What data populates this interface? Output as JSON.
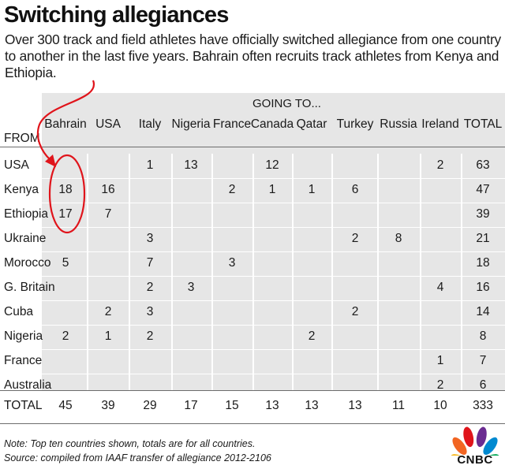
{
  "title": "Switching allegiances",
  "subtitle": "Over 300 track and field athletes have officially switched allegiance from one country to another in the last five years. Bahrain often recruits track athletes from Kenya and Ethiopia.",
  "notes": {
    "note": "Note: Top ten countries shown, totals are for all countries.",
    "source": "Source: compiled from IAAF transfer of allegiance 2012-2106"
  },
  "logo": {
    "text": "CNBC",
    "icon": "peacock-icon"
  },
  "colors": {
    "table_background": "#e6e6e6",
    "annotation_red": "#e0141b",
    "text": "#1a1a1a"
  },
  "chart_data": {
    "type": "table",
    "title": "Switching allegiances",
    "column_group_label": "GOING TO...",
    "row_group_label": "FROM",
    "columns": [
      "Bahrain",
      "USA",
      "Italy",
      "Nigeria",
      "France",
      "Canada",
      "Qatar",
      "Turkey",
      "Russia",
      "Ireland",
      "TOTAL"
    ],
    "rows": [
      {
        "label": "USA",
        "values": [
          "",
          "",
          "1",
          "13",
          "",
          "12",
          "",
          "",
          "",
          "2",
          "63"
        ]
      },
      {
        "label": "Kenya",
        "values": [
          "18",
          "16",
          "",
          "",
          "2",
          "1",
          "1",
          "6",
          "",
          "",
          "47"
        ]
      },
      {
        "label": "Ethiopia",
        "values": [
          "17",
          "7",
          "",
          "",
          "",
          "",
          "",
          "",
          "",
          "",
          "39"
        ]
      },
      {
        "label": "Ukraine",
        "values": [
          "",
          "",
          "3",
          "",
          "",
          "",
          "",
          "2",
          "8",
          "",
          "21"
        ]
      },
      {
        "label": "Morocco",
        "values": [
          "5",
          "",
          "7",
          "",
          "3",
          "",
          "",
          "",
          "",
          "",
          "18"
        ]
      },
      {
        "label": "G. Britain",
        "values": [
          "",
          "",
          "2",
          "3",
          "",
          "",
          "",
          "",
          "",
          "4",
          "16"
        ]
      },
      {
        "label": "Cuba",
        "values": [
          "",
          "2",
          "3",
          "",
          "",
          "",
          "",
          "2",
          "",
          "",
          "14"
        ]
      },
      {
        "label": "Nigeria",
        "values": [
          "2",
          "1",
          "2",
          "",
          "",
          "",
          "2",
          "",
          "",
          "",
          "8"
        ]
      },
      {
        "label": "France",
        "values": [
          "",
          "",
          "",
          "",
          "",
          "",
          "",
          "",
          "",
          "1",
          "7"
        ]
      },
      {
        "label": "Australia",
        "values": [
          "",
          "",
          "",
          "",
          "",
          "",
          "",
          "",
          "",
          "2",
          "6"
        ]
      }
    ],
    "total_row": {
      "label": "TOTAL",
      "values": [
        "45",
        "39",
        "29",
        "17",
        "15",
        "13",
        "13",
        "13",
        "11",
        "10",
        "333"
      ]
    },
    "highlight": {
      "rows": [
        "Kenya",
        "Ethiopia"
      ],
      "column": "Bahrain"
    }
  }
}
